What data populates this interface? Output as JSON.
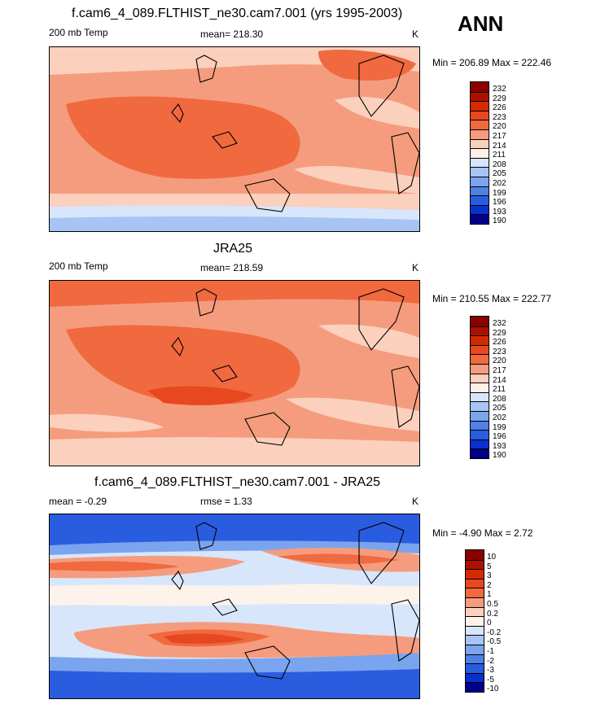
{
  "season": "ANN",
  "panels": [
    {
      "title": "f.cam6_4_089.FLTHIST_ne30.cam7.001 (yrs 1995-2003)",
      "left_label": "200 mb Temp",
      "center_label": "mean= 218.30",
      "right_label": "K",
      "minmax": "Min = 206.89 Max = 222.46",
      "colorbar_labels": [
        "232",
        "229",
        "226",
        "223",
        "220",
        "217",
        "214",
        "211",
        "208",
        "205",
        "202",
        "199",
        "196",
        "193",
        "190"
      ]
    },
    {
      "title": "JRA25",
      "left_label": "200 mb Temp",
      "center_label": "mean= 218.59",
      "right_label": "K",
      "minmax": "Min = 210.55 Max = 222.77",
      "colorbar_labels": [
        "232",
        "229",
        "226",
        "223",
        "220",
        "217",
        "214",
        "211",
        "208",
        "205",
        "202",
        "199",
        "196",
        "193",
        "190"
      ]
    },
    {
      "title": "f.cam6_4_089.FLTHIST_ne30.cam7.001 - JRA25",
      "left_label": "mean =  -0.29",
      "center_label": "rmse =   1.33",
      "right_label": "K",
      "minmax": "Min =  -4.90 Max =   2.72",
      "colorbar_labels": [
        "10",
        "5",
        "3",
        "2",
        "1",
        "0.5",
        "0.2",
        "0",
        "-0.2",
        "-0.5",
        "-1",
        "-2",
        "-3",
        "-5",
        "-10"
      ]
    }
  ],
  "colors": {
    "abs_colorbar": [
      "#8b0000",
      "#b00f00",
      "#d42a00",
      "#e8481f",
      "#f0693f",
      "#f59c7e",
      "#fbd0bd",
      "#fdf0e6",
      "#d7e6fb",
      "#a8c4f5",
      "#7ba4ee",
      "#4e80e6",
      "#2a5ce0",
      "#0a2fcf",
      "#00008b"
    ],
    "diff_colorbar": [
      "#8b0000",
      "#b00f00",
      "#d42a00",
      "#e8481f",
      "#f0693f",
      "#f59c7e",
      "#fbd0bd",
      "#fdf3ea",
      "#d7e6fb",
      "#a8c4f5",
      "#7ba4ee",
      "#4e80e6",
      "#2a5ce0",
      "#0a2fcf",
      "#00008b"
    ]
  }
}
